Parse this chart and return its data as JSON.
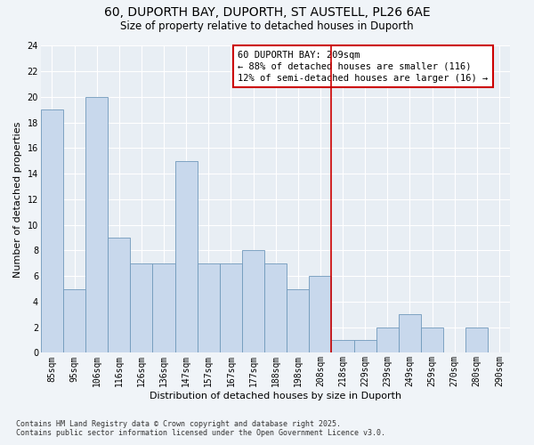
{
  "title": "60, DUPORTH BAY, DUPORTH, ST AUSTELL, PL26 6AE",
  "subtitle": "Size of property relative to detached houses in Duporth",
  "xlabel": "Distribution of detached houses by size in Duporth",
  "ylabel": "Number of detached properties",
  "bar_labels": [
    "85sqm",
    "95sqm",
    "106sqm",
    "116sqm",
    "126sqm",
    "136sqm",
    "147sqm",
    "157sqm",
    "167sqm",
    "177sqm",
    "188sqm",
    "198sqm",
    "208sqm",
    "218sqm",
    "229sqm",
    "239sqm",
    "249sqm",
    "259sqm",
    "270sqm",
    "280sqm",
    "290sqm"
  ],
  "bar_values": [
    19,
    5,
    20,
    9,
    7,
    7,
    15,
    7,
    7,
    8,
    7,
    5,
    6,
    1,
    1,
    2,
    3,
    2,
    0,
    2,
    0
  ],
  "bar_color": "#c8d8ec",
  "bar_edge_color": "#7099bb",
  "highlight_index": 12,
  "highlight_line_color": "#cc0000",
  "ylim": [
    0,
    24
  ],
  "yticks": [
    0,
    2,
    4,
    6,
    8,
    10,
    12,
    14,
    16,
    18,
    20,
    22,
    24
  ],
  "annotation_title": "60 DUPORTH BAY: 209sqm",
  "annotation_line1": "← 88% of detached houses are smaller (116)",
  "annotation_line2": "12% of semi-detached houses are larger (16) →",
  "annotation_box_color": "#ffffff",
  "annotation_box_edge": "#cc0000",
  "footnote1": "Contains HM Land Registry data © Crown copyright and database right 2025.",
  "footnote2": "Contains public sector information licensed under the Open Government Licence v3.0.",
  "bg_color": "#f0f4f8",
  "plot_bg_color": "#e8eef4",
  "grid_color": "#ffffff",
  "title_fontsize": 10,
  "subtitle_fontsize": 8.5,
  "axis_label_fontsize": 8,
  "tick_fontsize": 7,
  "annotation_fontsize": 7.5,
  "footnote_fontsize": 6
}
